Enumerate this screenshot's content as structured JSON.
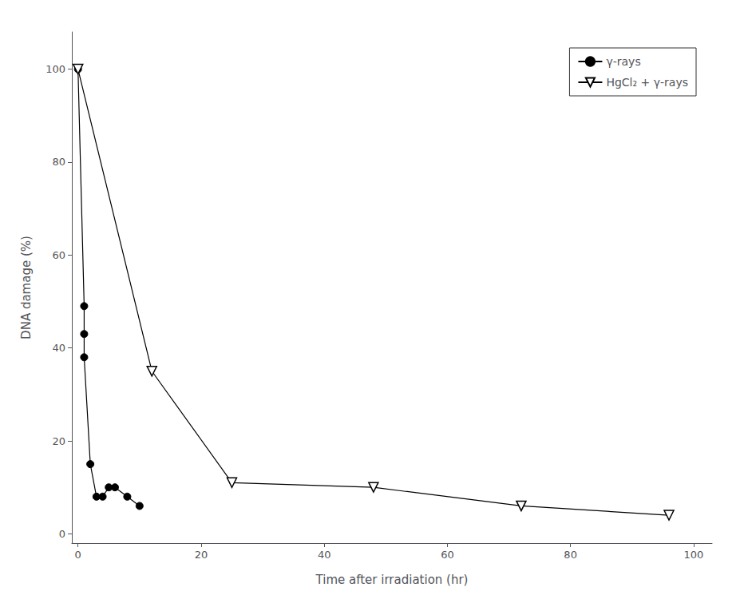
{
  "chart_data": {
    "type": "line",
    "xlabel": "Time after irradiation (hr)",
    "ylabel": "DNA damage (%)",
    "series": [
      {
        "name": "γ-rays",
        "x": [
          0,
          1,
          1,
          1,
          2,
          3,
          4,
          5,
          6,
          8,
          10
        ],
        "values": [
          100,
          49,
          43,
          38,
          15,
          8,
          8,
          10,
          10,
          8,
          6
        ],
        "color": "black",
        "marker": "circle",
        "line_style": "solid"
      },
      {
        "name": "HgCl₂ + γ-rays",
        "x": [
          0,
          12,
          25,
          48,
          72,
          96
        ],
        "values": [
          100,
          35,
          11,
          10,
          6,
          4
        ],
        "color": "black",
        "marker": "open-triangle-down",
        "line_style": "solid"
      }
    ],
    "xlim": [
      -1,
      103
    ],
    "ylim": [
      -2,
      108
    ],
    "xticks": [
      0,
      20,
      40,
      60,
      80,
      100
    ],
    "yticks": [
      0,
      20,
      40,
      60,
      80,
      100
    ],
    "grid": false,
    "legend": "upper right"
  }
}
